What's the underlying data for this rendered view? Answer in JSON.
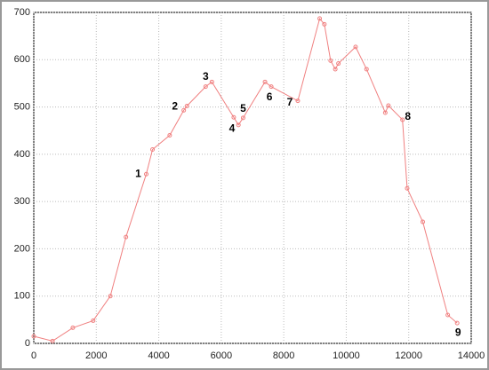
{
  "chart_data": {
    "type": "line",
    "x": [
      0,
      600,
      1250,
      1900,
      2450,
      2950,
      3600,
      3800,
      4350,
      4800,
      4900,
      5500,
      5700,
      6400,
      6550,
      6700,
      7400,
      7600,
      8450,
      9150,
      9300,
      9500,
      9650,
      9750,
      10300,
      10650,
      11250,
      11350,
      11800,
      11950,
      12450,
      13250,
      13550
    ],
    "series": [
      {
        "color": "#f08080",
        "values": [
          15,
          5,
          33,
          48,
          100,
          225,
          358,
          410,
          440,
          493,
          502,
          543,
          553,
          478,
          462,
          477,
          553,
          543,
          513,
          687,
          675,
          598,
          580,
          592,
          627,
          580,
          488,
          503,
          473,
          328,
          257,
          60,
          43
        ]
      }
    ],
    "annotations": [
      "1",
      "2",
      "3",
      "4",
      "5",
      "6",
      "7",
      "8",
      "9"
    ],
    "xlim": [
      0,
      14000
    ],
    "xticks": [
      0,
      2000,
      4000,
      6000,
      8000,
      10000,
      12000,
      14000
    ],
    "ylim": [
      0,
      700
    ],
    "yticks": [
      0,
      100,
      200,
      300,
      400,
      500,
      600,
      700
    ],
    "grid": true
  }
}
